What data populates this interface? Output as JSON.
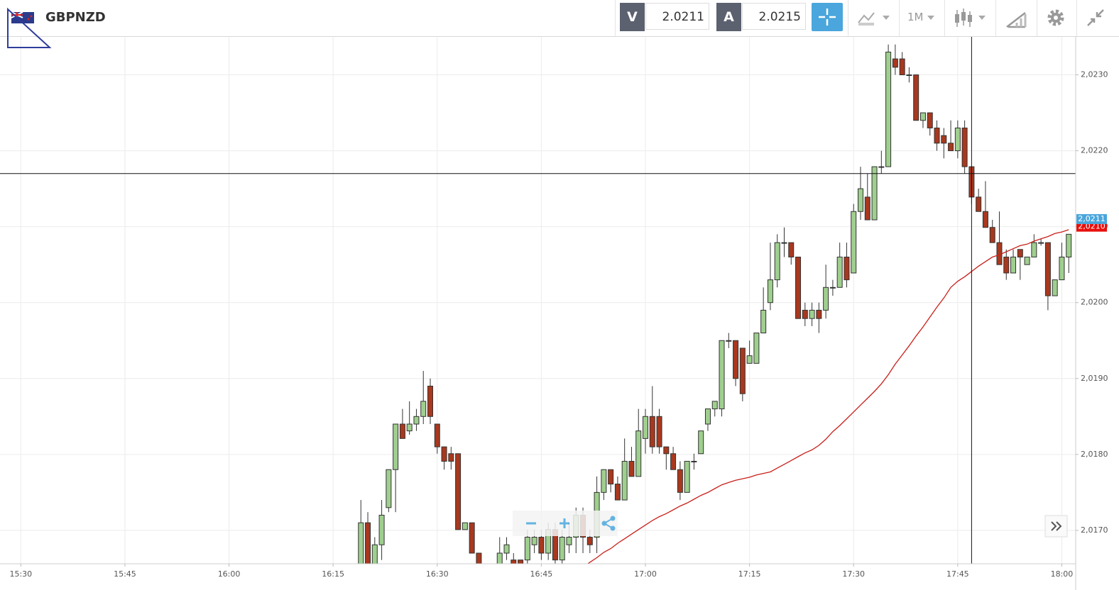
{
  "header": {
    "symbol": "GBPNZD",
    "bid_label": "V",
    "bid": 2.0211,
    "ask_label": "A",
    "ask": 2.0215,
    "timeframe": "1M"
  },
  "chart_data": {
    "type": "candlestick",
    "x": [
      "16:19",
      "16:20",
      "16:21",
      "16:22",
      "16:23",
      "16:24",
      "16:25",
      "16:26",
      "16:27",
      "16:28",
      "16:29",
      "16:30",
      "16:31",
      "16:32",
      "16:33",
      "16:34",
      "16:35",
      "16:36",
      "16:37",
      "16:38",
      "16:39",
      "16:40",
      "16:41",
      "16:42",
      "16:43",
      "16:44",
      "16:45",
      "16:46",
      "16:47",
      "16:48",
      "16:49",
      "16:50",
      "16:51",
      "16:52",
      "16:53",
      "16:54",
      "16:55",
      "16:56",
      "16:57",
      "16:58",
      "16:59",
      "17:00",
      "17:01",
      "17:02",
      "17:03",
      "17:04",
      "17:05",
      "17:06",
      "17:07",
      "17:08",
      "17:09",
      "17:10",
      "17:11",
      "17:12",
      "17:13",
      "17:14",
      "17:15",
      "17:16",
      "17:17",
      "17:18",
      "17:19",
      "17:20",
      "17:21",
      "17:22",
      "17:23",
      "17:24",
      "17:25",
      "17:26",
      "17:27",
      "17:28",
      "17:29",
      "17:30",
      "17:31",
      "17:32",
      "17:33",
      "17:34",
      "17:35",
      "17:36",
      "17:37",
      "17:38",
      "17:39",
      "17:40",
      "17:41",
      "17:42",
      "17:43",
      "17:44",
      "17:45",
      "17:46",
      "17:47",
      "17:48",
      "17:49",
      "17:50",
      "17:51",
      "17:52",
      "17:53",
      "17:54",
      "17:55",
      "17:56",
      "17:57",
      "17:58",
      "17:59",
      "18:00",
      "18:01"
    ],
    "open": [
      2.0164,
      2.0171,
      2.01645,
      2.01681,
      2.0173,
      2.0178,
      2.0184,
      2.01831,
      2.0184,
      2.0185,
      2.0189,
      2.0184,
      2.0181,
      2.01801,
      2.01801,
      2.01701,
      2.0171,
      2.0167,
      2.01645,
      2.0162,
      2.01645,
      2.0167,
      2.01661,
      2.01661,
      2.01661,
      2.01681,
      2.01691,
      2.0167,
      2.01701,
      2.01661,
      2.01681,
      2.01691,
      2.0172,
      2.01691,
      2.01691,
      2.0175,
      2.0178,
      2.01761,
      2.0174,
      2.01791,
      2.01771,
      2.01821,
      2.0185,
      2.0185,
      2.0181,
      2.01801,
      2.0178,
      2.0175,
      2.01791,
      2.01801,
      2.0184,
      2.0186,
      2.0186,
      2.0195,
      2.0195,
      2.0194,
      2.0192,
      2.0192,
      2.0196,
      2.02,
      2.0203,
      2.02079,
      2.02079,
      2.0206,
      2.0199,
      2.01979,
      2.0199,
      2.0199,
      2.0202,
      2.0202,
      2.0206,
      2.02039,
      2.0212,
      2.02139,
      2.02109,
      2.02179,
      2.02179,
      2.02321,
      2.02321,
      2.023,
      2.023,
      2.0224,
      2.0225,
      2.0223,
      2.0222,
      2.0221,
      2.022,
      2.0223,
      2.02179,
      2.02139,
      2.0212,
      2.02099,
      2.02079,
      2.0206,
      2.02039,
      2.0207,
      2.0205,
      2.0206,
      2.02079,
      2.02079,
      2.02009,
      2.0203,
      2.0206
    ],
    "high": [
      2.0174,
      2.01724,
      2.01691,
      2.0174,
      2.0178,
      2.0184,
      2.0186,
      2.0187,
      2.0186,
      2.0191,
      2.019,
      2.0184,
      2.0181,
      2.0181,
      2.01801,
      2.0171,
      2.0171,
      2.0167,
      2.0165,
      2.01645,
      2.01691,
      2.01691,
      2.0167,
      2.01661,
      2.01701,
      2.01701,
      2.01701,
      2.0171,
      2.0171,
      2.01701,
      2.0171,
      2.0173,
      2.0173,
      2.01701,
      2.01771,
      2.0178,
      2.0178,
      2.01771,
      2.01821,
      2.0181,
      2.0186,
      2.0186,
      2.0189,
      2.0186,
      2.0181,
      2.0181,
      2.01791,
      2.01791,
      2.01801,
      2.01831,
      2.0186,
      2.0187,
      2.0195,
      2.0196,
      2.0195,
      2.0194,
      2.0195,
      2.0196,
      2.0202,
      2.02079,
      2.0209,
      2.02099,
      2.02079,
      2.0206,
      2.02,
      2.02,
      2.02,
      2.0205,
      2.0203,
      2.02079,
      2.02079,
      2.0213,
      2.02179,
      2.0217,
      2.02179,
      2.022,
      2.0234,
      2.0234,
      2.0233,
      2.0231,
      2.023,
      2.0225,
      2.0225,
      2.0224,
      2.0223,
      2.0224,
      2.0224,
      2.0224,
      2.02179,
      2.0215,
      2.0216,
      2.02109,
      2.0212,
      2.0207,
      2.0207,
      2.0207,
      2.0206,
      2.0209,
      2.02084,
      2.02079,
      2.0203,
      2.02079,
      2.0209
    ],
    "low": [
      2.0163,
      2.0163,
      2.01635,
      2.01661,
      2.01724,
      2.01724,
      2.01821,
      2.01826,
      2.01831,
      2.0184,
      2.0184,
      2.01801,
      2.0178,
      2.0178,
      2.01701,
      2.01701,
      2.0167,
      2.0164,
      2.0161,
      2.0161,
      2.0164,
      2.01661,
      2.0164,
      2.0164,
      2.01645,
      2.0167,
      2.01661,
      2.01661,
      2.01656,
      2.01656,
      2.0167,
      2.0167,
      2.0167,
      2.0167,
      2.0167,
      2.0174,
      2.0175,
      2.0174,
      2.0174,
      2.01771,
      2.01771,
      2.01801,
      2.01801,
      2.01801,
      2.0178,
      2.0178,
      2.0174,
      2.0175,
      2.0178,
      2.01801,
      2.01831,
      2.0185,
      2.0185,
      2.0194,
      2.0189,
      2.0187,
      2.0192,
      2.0192,
      2.0196,
      2.0199,
      2.0202,
      2.0206,
      2.0205,
      2.01979,
      2.01969,
      2.01969,
      2.0196,
      2.01979,
      2.02009,
      2.0202,
      2.0202,
      2.02039,
      2.02109,
      2.02109,
      2.02109,
      2.0217,
      2.02179,
      2.023,
      2.023,
      2.0229,
      2.0224,
      2.0223,
      2.0222,
      2.022,
      2.0219,
      2.022,
      2.0219,
      2.0217,
      2.0213,
      2.0212,
      2.02099,
      2.02079,
      2.0205,
      2.0203,
      2.02039,
      2.0203,
      2.0205,
      2.0206,
      2.02075,
      2.0199,
      2.02009,
      2.0203,
      2.02039
    ],
    "close": [
      2.0171,
      2.0164,
      2.01681,
      2.0172,
      2.0178,
      2.0184,
      2.01821,
      2.0184,
      2.0185,
      2.0187,
      2.0185,
      2.0181,
      2.01791,
      2.01791,
      2.01701,
      2.0171,
      2.0167,
      2.01645,
      2.0162,
      2.0164,
      2.0167,
      2.01681,
      2.01645,
      2.0165,
      2.01691,
      2.01691,
      2.0167,
      2.01701,
      2.01661,
      2.01691,
      2.01691,
      2.0172,
      2.01691,
      2.01681,
      2.0175,
      2.0178,
      2.01761,
      2.0174,
      2.01791,
      2.01771,
      2.01831,
      2.0185,
      2.0181,
      2.0181,
      2.01801,
      2.0178,
      2.0175,
      2.01791,
      2.01791,
      2.01831,
      2.0186,
      2.0187,
      2.0195,
      2.0195,
      2.019,
      2.0188,
      2.0193,
      2.0196,
      2.0199,
      2.0203,
      2.02079,
      2.02079,
      2.0206,
      2.01979,
      2.01979,
      2.0199,
      2.01979,
      2.0202,
      2.0202,
      2.0206,
      2.0203,
      2.0212,
      2.0215,
      2.02109,
      2.02179,
      2.02179,
      2.0233,
      2.0231,
      2.023,
      2.023,
      2.0224,
      2.0225,
      2.0223,
      2.0221,
      2.0221,
      2.022,
      2.0223,
      2.02179,
      2.02139,
      2.0212,
      2.02099,
      2.02079,
      2.0205,
      2.02039,
      2.0206,
      2.0206,
      2.0206,
      2.02079,
      2.02079,
      2.02009,
      2.0203,
      2.0206,
      2.0209
    ],
    "up_color": "#9fcf8e",
    "down_color": "#a8381e",
    "ma_color": "#c8201a",
    "ma_values": [
      null,
      null,
      null,
      null,
      null,
      null,
      null,
      null,
      null,
      null,
      null,
      null,
      null,
      null,
      null,
      null,
      null,
      null,
      null,
      null,
      null,
      null,
      null,
      null,
      null,
      null,
      null,
      null,
      null,
      null,
      null,
      null,
      2.01651,
      2.01658,
      2.01664,
      2.01671,
      2.01676,
      2.01683,
      2.01689,
      2.01695,
      2.01701,
      2.01707,
      2.01713,
      2.01718,
      2.01722,
      2.01727,
      2.01732,
      2.01736,
      2.01741,
      2.01746,
      2.0175,
      2.01755,
      2.0176,
      2.01763,
      2.01766,
      2.01768,
      2.0177,
      2.01773,
      2.01775,
      2.01777,
      2.01782,
      2.01787,
      2.01792,
      2.01797,
      2.01802,
      2.01806,
      2.01812,
      2.0182,
      2.0183,
      2.01838,
      2.01847,
      2.01856,
      2.01865,
      2.01874,
      2.01883,
      2.01893,
      2.01905,
      2.01919,
      2.01931,
      2.01943,
      2.01956,
      2.01968,
      2.01981,
      2.01994,
      2.02006,
      2.0202,
      2.02028,
      2.02034,
      2.02041,
      2.02048,
      2.02054,
      2.0206,
      2.02063,
      2.02067,
      2.02071,
      2.02075,
      2.02077,
      2.02081,
      2.02084,
      2.02087,
      2.02091,
      2.02093,
      2.02096
    ],
    "xlim": [
      "15:27",
      "18:02"
    ],
    "xticks": [
      "15:30",
      "15:45",
      "16:00",
      "16:15",
      "16:30",
      "16:45",
      "17:00",
      "17:15",
      "17:30",
      "17:45",
      "18:00"
    ],
    "ylim": [
      2.01656,
      2.0235
    ],
    "yticks": [
      {
        "value": 2.017,
        "label": "2,0170"
      },
      {
        "value": 2.018,
        "label": "2,0180"
      },
      {
        "value": 2.019,
        "label": "2,0190"
      },
      {
        "value": 2.02,
        "label": "2,0200"
      },
      {
        "value": 2.021,
        "label": "2,0210"
      },
      {
        "value": 2.022,
        "label": "2,0220"
      },
      {
        "value": 2.023,
        "label": "2,0230"
      }
    ],
    "grid": true,
    "crosshair": {
      "x": "17:47",
      "y": 2.0217
    },
    "price_tags": [
      {
        "value": 2.021,
        "label": "2,0210",
        "color": "#e8100c"
      },
      {
        "value": 2.0211,
        "label": "2,0211",
        "color": "#4aa6dc"
      }
    ]
  }
}
